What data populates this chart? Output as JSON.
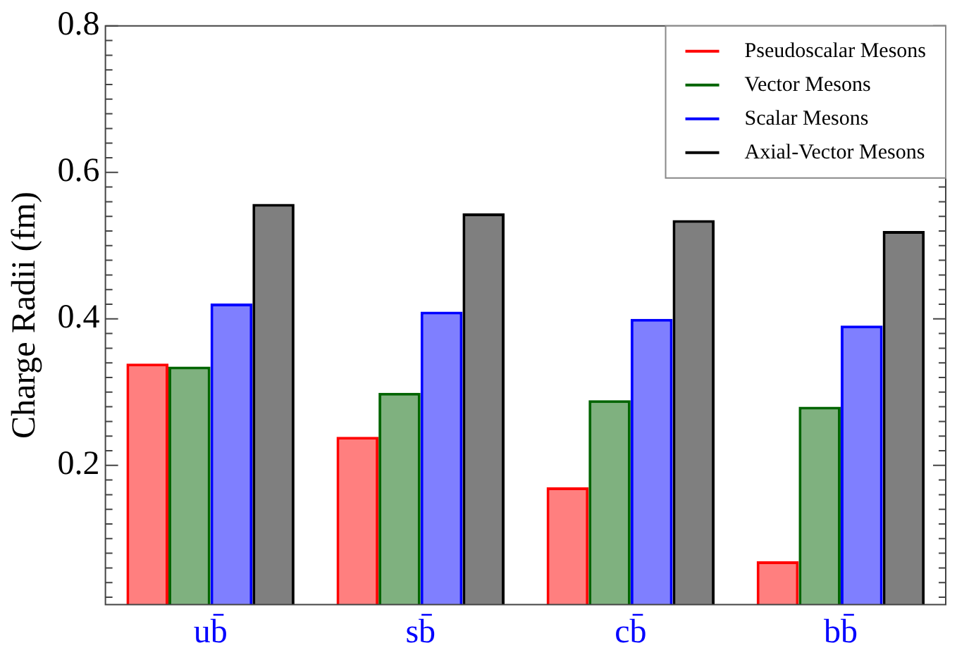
{
  "chart_data": {
    "type": "bar",
    "ylabel": "Charge Radii (fm)",
    "categories": [
      "ub̄",
      "sb̄",
      "cb̄",
      "bb̄"
    ],
    "series": [
      {
        "name": "Pseudoscalar Mesons",
        "color": "#ff0000",
        "values": [
          0.339,
          0.239,
          0.17,
          0.069
        ]
      },
      {
        "name": "Vector Mesons",
        "color": "#006400",
        "values": [
          0.335,
          0.299,
          0.289,
          0.28
        ]
      },
      {
        "name": "Scalar Mesons",
        "color": "#0000ff",
        "values": [
          0.421,
          0.41,
          0.4,
          0.391
        ]
      },
      {
        "name": "Axial-Vector Mesons",
        "color": "#000000",
        "values": [
          0.557,
          0.544,
          0.535,
          0.52
        ]
      }
    ],
    "ylim": [
      0.01,
      0.8
    ],
    "yticks": [
      {
        "value": 0.02,
        "label": null
      },
      {
        "value": 0.04,
        "label": null
      },
      {
        "value": 0.06,
        "label": null
      },
      {
        "value": 0.08,
        "label": null
      },
      {
        "value": 0.1,
        "label": null
      },
      {
        "value": 0.12,
        "label": null
      },
      {
        "value": 0.14,
        "label": null
      },
      {
        "value": 0.16,
        "label": null
      },
      {
        "value": 0.18,
        "label": null
      },
      {
        "value": 0.2,
        "label": "0.2"
      },
      {
        "value": 0.22,
        "label": null
      },
      {
        "value": 0.24,
        "label": null
      },
      {
        "value": 0.26,
        "label": null
      },
      {
        "value": 0.28,
        "label": null
      },
      {
        "value": 0.3,
        "label": null
      },
      {
        "value": 0.32,
        "label": null
      },
      {
        "value": 0.34,
        "label": null
      },
      {
        "value": 0.36,
        "label": null
      },
      {
        "value": 0.38,
        "label": null
      },
      {
        "value": 0.4,
        "label": "0.4"
      },
      {
        "value": 0.42,
        "label": null
      },
      {
        "value": 0.44,
        "label": null
      },
      {
        "value": 0.46,
        "label": null
      },
      {
        "value": 0.48,
        "label": null
      },
      {
        "value": 0.5,
        "label": null
      },
      {
        "value": 0.52,
        "label": null
      },
      {
        "value": 0.54,
        "label": null
      },
      {
        "value": 0.56,
        "label": null
      },
      {
        "value": 0.58,
        "label": null
      },
      {
        "value": 0.6,
        "label": "0.6"
      },
      {
        "value": 0.62,
        "label": null
      },
      {
        "value": 0.64,
        "label": null
      },
      {
        "value": 0.66,
        "label": null
      },
      {
        "value": 0.68,
        "label": null
      },
      {
        "value": 0.7,
        "label": null
      },
      {
        "value": 0.72,
        "label": null
      },
      {
        "value": 0.74,
        "label": null
      },
      {
        "value": 0.76,
        "label": null
      },
      {
        "value": 0.78,
        "label": null
      },
      {
        "value": 0.8,
        "label": "0.8"
      }
    ],
    "grid": false,
    "legend": "top right"
  }
}
